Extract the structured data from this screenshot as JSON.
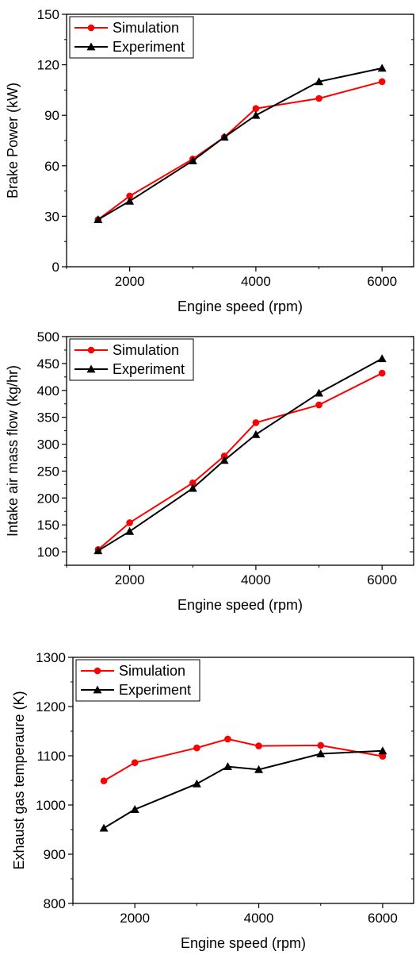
{
  "chart_data": [
    {
      "type": "line",
      "xlabel": "Engine speed (rpm)",
      "ylabel": "Brake Power (kW)",
      "xlim": [
        1000,
        6500
      ],
      "ylim": [
        0,
        150
      ],
      "xticks": [
        2000,
        4000,
        6000
      ],
      "yticks": [
        0,
        30,
        60,
        90,
        120,
        150
      ],
      "legend": "top-left",
      "series": [
        {
          "name": "Simulation",
          "color": "#ff0000",
          "marker": "circle",
          "x": [
            1500,
            2000,
            3000,
            3500,
            4000,
            5000,
            6000
          ],
          "y": [
            28,
            42,
            64,
            77,
            94,
            100,
            110
          ]
        },
        {
          "name": "Experiment",
          "color": "#000000",
          "marker": "triangle",
          "x": [
            1500,
            2000,
            3000,
            3500,
            4000,
            5000,
            6000
          ],
          "y": [
            28,
            39,
            63,
            77,
            90,
            110,
            118
          ]
        }
      ]
    },
    {
      "type": "line",
      "xlabel": "Engine speed (rpm)",
      "ylabel": "Intake air mass flow (kg/hr)",
      "xlim": [
        1000,
        6500
      ],
      "ylim": [
        75,
        500
      ],
      "xticks": [
        2000,
        4000,
        6000
      ],
      "yticks": [
        100,
        150,
        200,
        250,
        300,
        350,
        400,
        450,
        500
      ],
      "legend": "top-left",
      "series": [
        {
          "name": "Simulation",
          "color": "#ff0000",
          "marker": "circle",
          "x": [
            1500,
            2000,
            3000,
            3500,
            4000,
            5000,
            6000
          ],
          "y": [
            104,
            154,
            228,
            278,
            340,
            373,
            432
          ]
        },
        {
          "name": "Experiment",
          "color": "#000000",
          "marker": "triangle",
          "x": [
            1500,
            2000,
            3000,
            3500,
            4000,
            5000,
            6000
          ],
          "y": [
            102,
            138,
            218,
            270,
            318,
            395,
            459
          ]
        }
      ]
    },
    {
      "type": "line",
      "xlabel": "Engine speed (rpm)",
      "ylabel": "Exhaust gas temperaure (K)",
      "xlim": [
        1000,
        6500
      ],
      "ylim": [
        800,
        1300
      ],
      "xticks": [
        2000,
        4000,
        6000
      ],
      "yticks": [
        800,
        900,
        1000,
        1100,
        1200,
        1300
      ],
      "legend": "top-left",
      "series": [
        {
          "name": "Simulation",
          "color": "#ff0000",
          "marker": "circle",
          "x": [
            1500,
            2000,
            3000,
            3500,
            4000,
            5000,
            6000
          ],
          "y": [
            1049,
            1086,
            1116,
            1134,
            1120,
            1121,
            1099
          ]
        },
        {
          "name": "Experiment",
          "color": "#000000",
          "marker": "triangle",
          "x": [
            1500,
            2000,
            3000,
            3500,
            4000,
            5000,
            6000
          ],
          "y": [
            953,
            991,
            1043,
            1078,
            1072,
            1104,
            1110
          ]
        }
      ]
    }
  ]
}
